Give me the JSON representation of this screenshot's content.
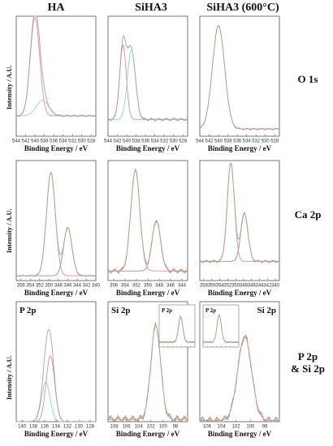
{
  "columns": [
    "HA",
    "SiHA3",
    "SiHA3 (600°C)"
  ],
  "rows": [
    "O 1s",
    "Ca 2p",
    "P 2p\n& Si 2p"
  ],
  "ylabel": "Intensity / A.U.",
  "chart_data": [
    {
      "id": "o1s-ha",
      "type": "line",
      "xlabel": "Binding Energy / eV",
      "xlim": [
        544,
        527
      ],
      "xticks": [
        544,
        542,
        540,
        538,
        536,
        534,
        532,
        530,
        528
      ],
      "series": [
        {
          "color": "#d98ab4",
          "bg": 0.17,
          "peaks": [
            [
              531.0,
              0.82,
              1.0
            ]
          ]
        },
        {
          "color": "#8ecfe0",
          "bg": 0.17,
          "peaks": [
            [
              532.6,
              0.13,
              1.3
            ]
          ]
        },
        {
          "color": "#b0a28a",
          "bg": 0.17,
          "peaks": [
            [
              531.0,
              0.82,
              1.0
            ],
            [
              532.6,
              0.13,
              1.3
            ]
          ],
          "noise": 0.008
        }
      ]
    },
    {
      "id": "o1s-siha3",
      "type": "line",
      "xlabel": "Binding Energy / eV",
      "xlim": [
        544,
        527
      ],
      "xticks": [
        544,
        542,
        540,
        538,
        536,
        534,
        532,
        530,
        528
      ],
      "series": [
        {
          "color": "#d98ab4",
          "bg": 0.14,
          "peaks": [
            [
              530.2,
              0.62,
              0.7
            ]
          ]
        },
        {
          "color": "#8ecfe0",
          "bg": 0.14,
          "peaks": [
            [
              532.0,
              0.58,
              0.85
            ]
          ]
        },
        {
          "color": "#b0a28a",
          "bg": 0.14,
          "peaks": [
            [
              530.2,
              0.62,
              0.7
            ],
            [
              532.0,
              0.58,
              0.85
            ]
          ],
          "noise": 0.012
        }
      ]
    },
    {
      "id": "o1s-siha3-600",
      "type": "line",
      "xlabel": "Binding Energy / eV",
      "xlim": [
        544,
        527
      ],
      "xticks": [
        544,
        542,
        540,
        538,
        536,
        534,
        532,
        530,
        528
      ],
      "series": [
        {
          "color": "#d98ab4",
          "bg": 0.06,
          "peaks": [
            [
              531.0,
              0.86,
              1.3
            ]
          ]
        },
        {
          "color": "#b0a28a",
          "bg": 0.06,
          "peaks": [
            [
              531.0,
              0.86,
              1.3
            ]
          ],
          "noise": 0.008
        }
      ]
    },
    {
      "id": "ca2p-ha",
      "type": "line",
      "xlabel": "Binding Energy / eV",
      "xlim": [
        357,
        340
      ],
      "xticks": [
        356,
        354,
        352,
        350,
        348,
        346,
        344,
        342,
        340
      ],
      "series": [
        {
          "color": "#8e9a7c",
          "bg": 0.04,
          "peaks": [
            [
              351.0,
              0.4,
              0.9
            ]
          ]
        },
        {
          "color": "#d98ab4",
          "bg": 0.04,
          "peaks": [
            [
              347.4,
              0.86,
              0.95
            ]
          ]
        },
        {
          "color": "#b0a28a",
          "bg": 0.04,
          "peaks": [
            [
              351.0,
              0.4,
              0.9
            ],
            [
              347.4,
              0.86,
              0.95
            ]
          ],
          "noise": 0.006
        }
      ]
    },
    {
      "id": "ca2p-siha3",
      "type": "line",
      "xlabel": "Binding Energy / eV",
      "xlim": [
        357,
        343
      ],
      "xticks": [
        356,
        354,
        352,
        350,
        348,
        346,
        344
      ],
      "series": [
        {
          "color": "#8e9a7c",
          "bg": 0.08,
          "peaks": [
            [
              351.5,
              0.42,
              0.75
            ]
          ]
        },
        {
          "color": "#d98ab4",
          "bg": 0.08,
          "peaks": [
            [
              347.8,
              0.84,
              0.8
            ]
          ]
        },
        {
          "color": "#b0a28a",
          "bg": 0.08,
          "peaks": [
            [
              351.5,
              0.42,
              0.75
            ],
            [
              347.8,
              0.84,
              0.8
            ]
          ],
          "noise": 0.02
        }
      ]
    },
    {
      "id": "ca2p-siha3-600",
      "type": "line",
      "xlabel": "Binding Energy / eV",
      "xlim": [
        359,
        339
      ],
      "xticks": [
        358,
        356,
        354,
        352,
        350,
        348,
        346,
        344,
        342,
        340
      ],
      "series": [
        {
          "color": "#8e9a7c",
          "bg": 0.16,
          "peaks": [
            [
              350.2,
              0.4,
              0.9
            ]
          ]
        },
        {
          "color": "#d98ab4",
          "bg": 0.16,
          "peaks": [
            [
              346.8,
              0.82,
              0.9
            ]
          ]
        },
        {
          "color": "#b0a28a",
          "bg": 0.16,
          "peaks": [
            [
              350.2,
              0.4,
              0.9
            ],
            [
              346.8,
              0.82,
              0.9
            ]
          ],
          "noise": 0.012
        }
      ]
    },
    {
      "id": "p2p-ha",
      "type": "line",
      "xlabel": "Binding Energy / eV",
      "title": "P 2p",
      "xlim": [
        141,
        127
      ],
      "xticks": [
        140,
        138,
        136,
        134,
        132,
        130,
        128
      ],
      "series": [
        {
          "color": "#d98ab4",
          "bg": 0.0,
          "peaks": [
            [
              133.0,
              0.55,
              0.75
            ]
          ]
        },
        {
          "color": "#8ecfe0",
          "bg": 0.0,
          "peaks": [
            [
              132.2,
              0.33,
              0.75
            ]
          ]
        },
        {
          "color": "#b0a28a",
          "bg": 0.0,
          "peaks": [
            [
              133.0,
              0.55,
              0.75
            ],
            [
              132.2,
              0.33,
              0.75
            ]
          ],
          "noise": 0.006
        }
      ]
    },
    {
      "id": "si2p-siha3",
      "type": "line",
      "xlabel": "Binding Energy / eV",
      "title": "Si 2p",
      "xlim": [
        109,
        96
      ],
      "xticks": [
        108,
        106,
        104,
        102,
        100,
        98
      ],
      "series": [
        {
          "color": "#d98ab4",
          "bg": 0.02,
          "peaks": [
            [
              103.8,
              0.78,
              0.8
            ]
          ]
        },
        {
          "color": "#b0a28a",
          "bg": 0.02,
          "peaks": [
            [
              103.8,
              0.78,
              0.8
            ]
          ],
          "noise": 0.035
        }
      ],
      "inset": {
        "title": "P 2p",
        "series": [
          {
            "color": "#d98ab4",
            "bg": 0.05,
            "peaks": [
              [
                0.6,
                0.75,
                0.06
              ]
            ]
          },
          {
            "color": "#b0a28a",
            "bg": 0.05,
            "peaks": [
              [
                0.6,
                0.75,
                0.06
              ]
            ],
            "noise": 0.02
          }
        ]
      }
    },
    {
      "id": "si2p-siha3-600",
      "type": "line",
      "xlabel": "Binding Energy / eV",
      "title": "Si 2p",
      "xlim": [
        107,
        96
      ],
      "xticks": [
        106,
        104,
        102,
        100,
        98
      ],
      "series": [
        {
          "color": "#d98ab4",
          "bg": 0.01,
          "peaks": [
            [
              102.2,
              0.7,
              0.95
            ]
          ]
        },
        {
          "color": "#b0a28a",
          "bg": 0.01,
          "peaks": [
            [
              102.2,
              0.7,
              0.95
            ]
          ],
          "noise": 0.035
        }
      ],
      "inset": {
        "title": "P 2p",
        "series": [
          {
            "color": "#8ecfe0",
            "bg": 0.05,
            "peaks": [
              [
                0.45,
                0.8,
                0.06
              ]
            ]
          },
          {
            "color": "#b0a28a",
            "bg": 0.05,
            "peaks": [
              [
                0.45,
                0.8,
                0.06
              ]
            ],
            "noise": 0.02
          }
        ]
      }
    }
  ]
}
